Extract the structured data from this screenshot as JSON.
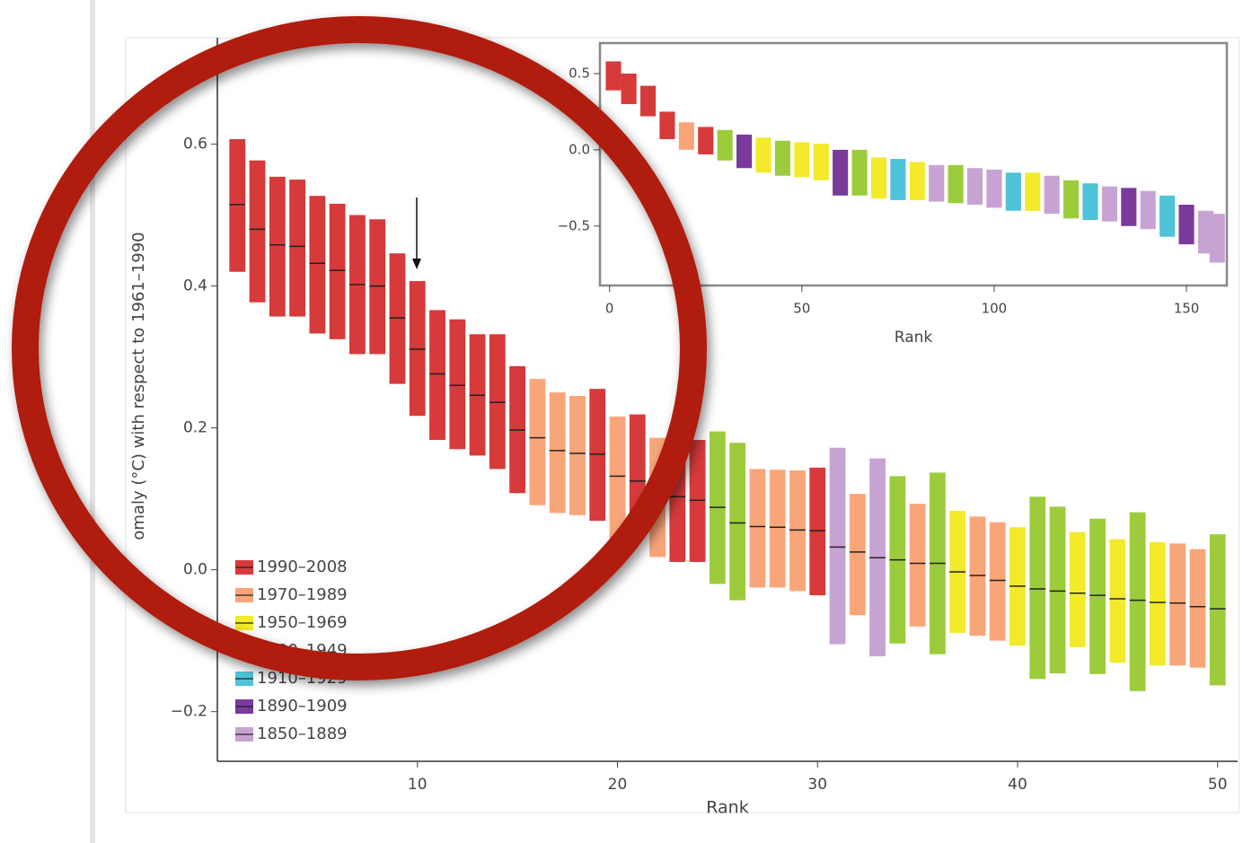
{
  "chart_data": [
    {
      "type": "range-bar",
      "ylabel": "omaly (°C) with respect to 1961–1990",
      "xlabel": "Rank",
      "x": [
        1,
        2,
        3,
        4,
        5,
        6,
        7,
        8,
        9,
        10,
        11,
        12,
        13,
        14,
        15,
        16,
        17,
        18,
        19,
        20,
        21,
        22,
        23,
        24,
        25,
        26,
        27,
        28,
        29,
        30,
        31,
        32,
        33,
        34,
        35,
        36,
        37,
        38,
        39,
        40,
        41,
        42,
        43,
        44,
        45,
        46,
        47,
        48,
        49,
        50
      ],
      "values": [
        0.515,
        0.48,
        0.458,
        0.456,
        0.432,
        0.422,
        0.402,
        0.4,
        0.355,
        0.311,
        0.276,
        0.26,
        0.246,
        0.236,
        0.197,
        0.186,
        0.168,
        0.164,
        0.163,
        0.132,
        0.125,
        0.103,
        0.103,
        0.098,
        0.088,
        0.066,
        0.061,
        0.06,
        0.056,
        0.055,
        0.032,
        0.025,
        0.017,
        0.014,
        0.009,
        0.009,
        -0.003,
        -0.008,
        -0.015,
        -0.023,
        -0.027,
        -0.03,
        -0.033,
        -0.036,
        -0.041,
        -0.043,
        -0.046,
        -0.047,
        -0.052,
        -0.055
      ],
      "low": [
        0.42,
        0.377,
        0.357,
        0.357,
        0.333,
        0.325,
        0.304,
        0.304,
        0.262,
        0.217,
        0.183,
        0.17,
        0.161,
        0.142,
        0.108,
        0.091,
        0.08,
        0.077,
        0.069,
        0.043,
        0.052,
        0.018,
        0.011,
        0.011,
        -0.02,
        -0.043,
        -0.025,
        -0.025,
        -0.03,
        -0.036,
        -0.105,
        -0.064,
        -0.122,
        -0.104,
        -0.08,
        -0.119,
        -0.089,
        -0.093,
        -0.1,
        -0.107,
        -0.154,
        -0.146,
        -0.109,
        -0.147,
        -0.131,
        -0.171,
        -0.135,
        -0.135,
        -0.138,
        -0.163
      ],
      "high": [
        0.607,
        0.577,
        0.554,
        0.55,
        0.527,
        0.516,
        0.5,
        0.494,
        0.446,
        0.407,
        0.366,
        0.353,
        0.332,
        0.332,
        0.287,
        0.269,
        0.25,
        0.245,
        0.255,
        0.216,
        0.219,
        0.186,
        0.179,
        0.183,
        0.195,
        0.179,
        0.142,
        0.141,
        0.14,
        0.144,
        0.172,
        0.107,
        0.157,
        0.132,
        0.093,
        0.137,
        0.083,
        0.075,
        0.067,
        0.06,
        0.103,
        0.089,
        0.053,
        0.072,
        0.043,
        0.081,
        0.039,
        0.037,
        0.029,
        0.05
      ],
      "colors": [
        "#d63a3a",
        "#d63a3a",
        "#d63a3a",
        "#d63a3a",
        "#d63a3a",
        "#d63a3a",
        "#d63a3a",
        "#d63a3a",
        "#d63a3a",
        "#d63a3a",
        "#d63a3a",
        "#d63a3a",
        "#d63a3a",
        "#d63a3a",
        "#d63a3a",
        "#f9a57a",
        "#f9a57a",
        "#f9a57a",
        "#d63a3a",
        "#f9a57a",
        "#d63a3a",
        "#f9a57a",
        "#d63a3a",
        "#d63a3a",
        "#9ccc3c",
        "#9ccc3c",
        "#f9a57a",
        "#f9a57a",
        "#f9a57a",
        "#d63a3a",
        "#c7a3d4",
        "#f9a57a",
        "#c7a3d4",
        "#9ccc3c",
        "#f9a57a",
        "#9ccc3c",
        "#f2ea2a",
        "#f9a57a",
        "#f9a57a",
        "#f2ea2a",
        "#9ccc3c",
        "#9ccc3c",
        "#f2ea2a",
        "#9ccc3c",
        "#f2ea2a",
        "#9ccc3c",
        "#f2ea2a",
        "#f9a57a",
        "#f9a57a",
        "#9ccc3c"
      ],
      "xlim": [
        0,
        51
      ],
      "ylim": [
        -0.27,
        0.75
      ],
      "xticks": [
        10,
        20,
        30,
        40,
        50
      ],
      "yticks": [
        {
          "value": 0.6,
          "label": "0.6"
        },
        {
          "value": 0.4,
          "label": "0.4"
        },
        {
          "value": 0.2,
          "label": "0.2"
        },
        {
          "value": 0,
          "label": "0.0"
        },
        {
          "value": -0.2,
          "label": "−0.2"
        }
      ],
      "legend_position": "lower-left",
      "legend": [
        {
          "name": "1990–2008",
          "color": "#d63a3a"
        },
        {
          "name": "1970–1989",
          "color": "#f9a57a"
        },
        {
          "name": "1950–1969",
          "color": "#f2ea2a"
        },
        {
          "name": "1930–1949",
          "color": "#9ccc3c"
        },
        {
          "name": "1910–1929",
          "color": "#4fc3d8"
        },
        {
          "name": "1890–1909",
          "color": "#7a3a9a"
        },
        {
          "name": "1850–1889",
          "color": "#c7a3d4"
        }
      ]
    },
    {
      "type": "range-bar",
      "xlabel": "Rank",
      "x": [
        1,
        5,
        10,
        15,
        20,
        25,
        30,
        35,
        40,
        45,
        50,
        55,
        60,
        65,
        70,
        75,
        80,
        85,
        90,
        95,
        100,
        105,
        110,
        115,
        120,
        125,
        130,
        135,
        140,
        145,
        150,
        155,
        158
      ],
      "low": [
        0.39,
        0.3,
        0.22,
        0.07,
        0.0,
        -0.03,
        -0.07,
        -0.12,
        -0.15,
        -0.17,
        -0.18,
        -0.2,
        -0.3,
        -0.3,
        -0.32,
        -0.33,
        -0.33,
        -0.34,
        -0.35,
        -0.36,
        -0.38,
        -0.4,
        -0.4,
        -0.42,
        -0.45,
        -0.46,
        -0.47,
        -0.5,
        -0.52,
        -0.57,
        -0.62,
        -0.68,
        -0.74
      ],
      "high": [
        0.58,
        0.5,
        0.42,
        0.25,
        0.18,
        0.15,
        0.13,
        0.1,
        0.08,
        0.06,
        0.05,
        0.04,
        0.0,
        0.0,
        -0.05,
        -0.06,
        -0.08,
        -0.1,
        -0.1,
        -0.12,
        -0.13,
        -0.15,
        -0.15,
        -0.17,
        -0.2,
        -0.22,
        -0.24,
        -0.25,
        -0.27,
        -0.3,
        -0.36,
        -0.4,
        -0.42
      ],
      "colors": [
        "#d63a3a",
        "#d63a3a",
        "#d63a3a",
        "#d63a3a",
        "#f9a57a",
        "#d63a3a",
        "#9ccc3c",
        "#7a3a9a",
        "#f2ea2a",
        "#9ccc3c",
        "#f2ea2a",
        "#f2ea2a",
        "#7a3a9a",
        "#9ccc3c",
        "#f2ea2a",
        "#4fc3d8",
        "#f2ea2a",
        "#c7a3d4",
        "#9ccc3c",
        "#c7a3d4",
        "#c7a3d4",
        "#4fc3d8",
        "#f2ea2a",
        "#c7a3d4",
        "#9ccc3c",
        "#4fc3d8",
        "#c7a3d4",
        "#7a3a9a",
        "#c7a3d4",
        "#4fc3d8",
        "#7a3a9a",
        "#c7a3d4",
        "#c7a3d4"
      ],
      "xlim": [
        -2.5,
        160.5
      ],
      "ylim": [
        -0.89,
        0.7
      ],
      "xticks": [
        0,
        50,
        100,
        150
      ],
      "yticks": [
        {
          "value": 0.5,
          "label": "0.5"
        },
        {
          "value": 0,
          "label": "0.0"
        },
        {
          "value": -0.5,
          "label": "−0.5"
        }
      ]
    }
  ]
}
